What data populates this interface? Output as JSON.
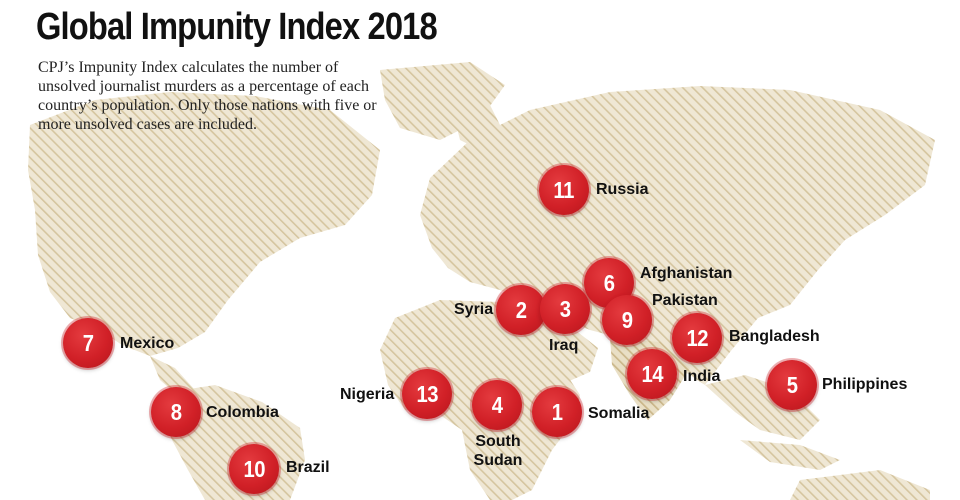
{
  "title": "Global Impunity Index 2018",
  "description": "CPJ’s Impunity Index calculates the number of unsolved journalist murders as a percentage of each country’s population. Only those nations with five or more unsolved cases are included.",
  "colors": {
    "marker": "#d12027",
    "land_stripe": "#d8c9a6",
    "text": "#111111"
  },
  "countries": [
    {
      "rank": "1",
      "name": "Somalia"
    },
    {
      "rank": "2",
      "name": "Syria"
    },
    {
      "rank": "3",
      "name": "Iraq"
    },
    {
      "rank": "4",
      "name": "South Sudan"
    },
    {
      "rank": "5",
      "name": "Philippines"
    },
    {
      "rank": "6",
      "name": "Afghanistan"
    },
    {
      "rank": "7",
      "name": "Mexico"
    },
    {
      "rank": "8",
      "name": "Colombia"
    },
    {
      "rank": "9",
      "name": "Pakistan"
    },
    {
      "rank": "10",
      "name": "Brazil"
    },
    {
      "rank": "11",
      "name": "Russia"
    },
    {
      "rank": "12",
      "name": "Bangladesh"
    },
    {
      "rank": "13",
      "name": "Nigeria"
    },
    {
      "rank": "14",
      "name": "India"
    }
  ]
}
